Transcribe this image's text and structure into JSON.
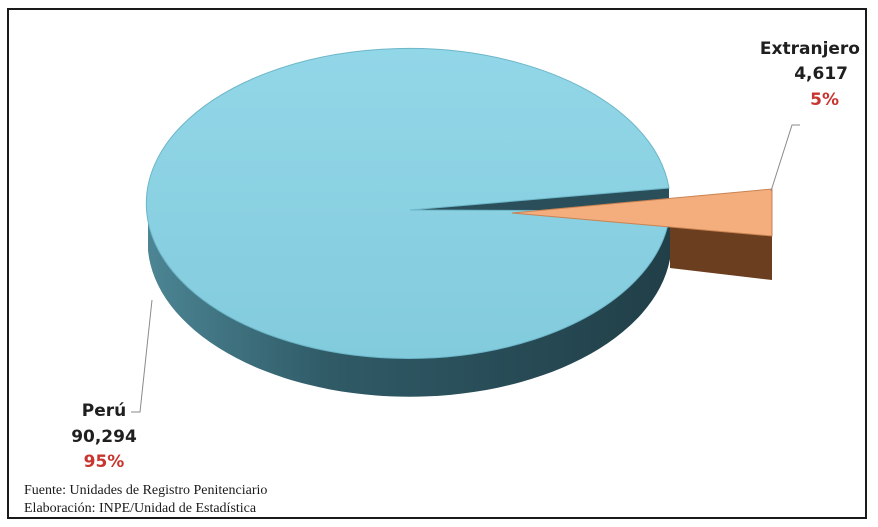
{
  "chart_data": {
    "type": "pie",
    "title": "",
    "series": [
      {
        "name": "Perú",
        "value": 90294,
        "value_label": "90,294",
        "percent_label": "95%"
      },
      {
        "name": "Extranjero",
        "value": 4617,
        "value_label": "4,617",
        "percent_label": "5%"
      }
    ],
    "legend": "none",
    "three_d": true,
    "exploded_slice": "Extranjero"
  },
  "colors": {
    "peru_top": "#8ad2e4",
    "peru_side": "#2d5562",
    "extranjero_top": "#f4ae7e",
    "extranjero_side": "#6b3e1f",
    "percent_text": "#c8342e"
  },
  "footer": {
    "source": "Fuente: Unidades de Registro Penitenciario",
    "elaboration": "Elaboración: INPE/Unidad de Estadística"
  }
}
